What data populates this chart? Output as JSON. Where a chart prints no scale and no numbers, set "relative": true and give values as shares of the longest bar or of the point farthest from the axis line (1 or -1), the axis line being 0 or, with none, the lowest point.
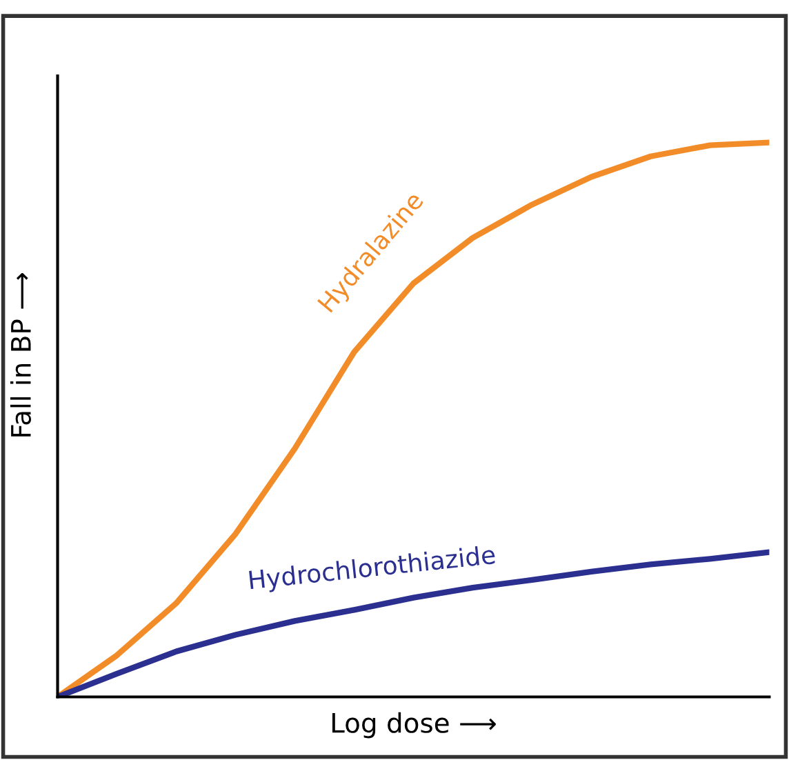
{
  "chart_data": {
    "type": "line",
    "relative": true,
    "xlabel": "Log dose ⟶",
    "ylabel": "Fall in BP ⟶",
    "categories": [
      null,
      null,
      null,
      null,
      null,
      null,
      null,
      null,
      null,
      null,
      null,
      null,
      null
    ],
    "series": [
      {
        "name": "Hydralazine",
        "color": "#f28c28",
        "values": [
          0,
          0.075,
          0.169,
          0.294,
          0.448,
          0.622,
          0.746,
          0.828,
          0.888,
          0.938,
          0.975,
          0.995,
          1
        ]
      },
      {
        "name": "Hydrochlorothiazide",
        "color": "#2b2f8f",
        "values": [
          0,
          0.042,
          0.082,
          0.112,
          0.137,
          0.157,
          0.179,
          0.197,
          0.211,
          0.226,
          0.239,
          0.249,
          0.261
        ]
      }
    ],
    "legend": false,
    "line_style": "solid",
    "marker": "none"
  }
}
